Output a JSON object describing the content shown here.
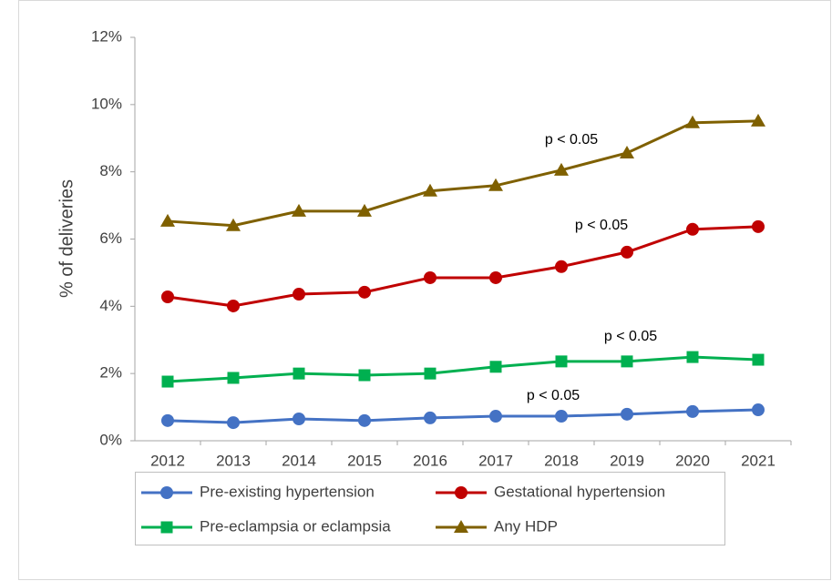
{
  "chart_data": {
    "type": "line",
    "categories": [
      "2012",
      "2013",
      "2014",
      "2015",
      "2016",
      "2017",
      "2018",
      "2019",
      "2020",
      "2021"
    ],
    "y_label": "% of deliveries",
    "ylim": [
      0,
      12
    ],
    "yticks": [
      {
        "value": 0,
        "label": "0%"
      },
      {
        "value": 2,
        "label": "2%"
      },
      {
        "value": 4,
        "label": "4%"
      },
      {
        "value": 6,
        "label": "6%"
      },
      {
        "value": 8,
        "label": "8%"
      },
      {
        "value": 10,
        "label": "10%"
      },
      {
        "value": 12,
        "label": "12%"
      }
    ],
    "grid": false,
    "series": [
      {
        "name": "Pre-existing hypertension",
        "color": "#4472c4",
        "marker": "circle",
        "values": [
          0.6,
          0.54,
          0.65,
          0.6,
          0.68,
          0.73,
          0.73,
          0.79,
          0.87,
          0.92
        ]
      },
      {
        "name": "Gestational hypertension",
        "color": "#c00000",
        "marker": "circle",
        "values": [
          4.28,
          4.01,
          4.36,
          4.42,
          4.85,
          4.85,
          5.18,
          5.61,
          6.29,
          6.37
        ]
      },
      {
        "name": "Pre-eclampsia or eclampsia",
        "color": "#00b050",
        "marker": "square",
        "values": [
          1.76,
          1.87,
          2.0,
          1.95,
          2.0,
          2.2,
          2.36,
          2.36,
          2.49,
          2.41
        ]
      },
      {
        "name": "Any HDP",
        "color": "#7f6000",
        "marker": "triangle",
        "values": [
          6.53,
          6.4,
          6.83,
          6.83,
          7.43,
          7.59,
          8.05,
          8.56,
          9.46,
          9.51
        ]
      }
    ],
    "annotations": [
      "p < 0.05",
      "p < 0.05",
      "p < 0.05",
      "p < 0.05"
    ],
    "legend": "bottom"
  }
}
